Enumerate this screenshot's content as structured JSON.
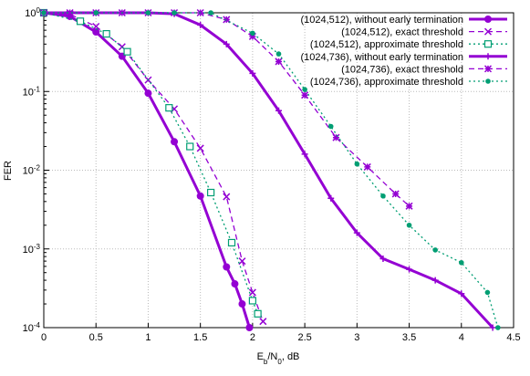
{
  "chart_data": {
    "type": "line",
    "xlabel": "E_b/N_0, dB",
    "ylabel": "FER",
    "xlim": [
      0,
      4.5
    ],
    "xticks": [
      0,
      0.5,
      1,
      1.5,
      2,
      2.5,
      3,
      3.5,
      4,
      4.5
    ],
    "ylim": [
      0.0001,
      1
    ],
    "log_y": true,
    "grid": true,
    "legend": "top-right",
    "yticks": [
      {
        "value": 0.0001,
        "label": "10^-4"
      },
      {
        "value": 0.001,
        "label": "10^-3"
      },
      {
        "value": 0.01,
        "label": "10^-2"
      },
      {
        "value": 0.1,
        "label": "10^-1"
      },
      {
        "value": 1,
        "label": "10^0"
      }
    ],
    "series": [
      {
        "name": "(1024,512), without early termination",
        "color": "#9400d3",
        "width": 3,
        "dash": "solid",
        "marker": "circle",
        "x": [
          0,
          0.25,
          0.5,
          0.75,
          1,
          1.25,
          1.5,
          1.75,
          1.83,
          1.9,
          1.97
        ],
        "values": [
          1,
          0.9,
          0.57,
          0.28,
          0.095,
          0.023,
          0.0047,
          0.00059,
          0.00036,
          0.0002,
          0.0001
        ]
      },
      {
        "name": "(1024,512), exact threshold",
        "color": "#9400d3",
        "width": 1.3,
        "dash": "dashed",
        "marker": "cross",
        "x": [
          0,
          0.25,
          0.5,
          0.75,
          1,
          1.25,
          1.5,
          1.75,
          1.9,
          2,
          2.1
        ],
        "values": [
          1,
          0.96,
          0.67,
          0.37,
          0.14,
          0.06,
          0.019,
          0.0046,
          0.0007,
          0.00028,
          0.00012
        ]
      },
      {
        "name": "(1024,512), approximate threshold",
        "color": "#009e73",
        "width": 1.3,
        "dash": "dotted",
        "marker": "square",
        "x": [
          0,
          0.35,
          0.6,
          0.8,
          1.2,
          1.4,
          1.6,
          1.8,
          2.0,
          2.05
        ],
        "values": [
          1,
          0.78,
          0.54,
          0.32,
          0.062,
          0.02,
          0.0052,
          0.0012,
          0.00022,
          0.00015
        ]
      },
      {
        "name": "(1024,736), without early termination",
        "color": "#9400d3",
        "width": 3,
        "dash": "solid",
        "marker": "plus",
        "x": [
          0,
          0.5,
          1,
          1.25,
          1.5,
          1.75,
          2,
          2.25,
          2.5,
          2.75,
          3,
          3.25,
          3.5,
          3.75,
          4,
          4.3
        ],
        "values": [
          1,
          1,
          1,
          0.97,
          0.7,
          0.4,
          0.17,
          0.057,
          0.016,
          0.0044,
          0.0016,
          0.00075,
          0.00055,
          0.0004,
          0.00027,
          0.0001
        ]
      },
      {
        "name": "(1024,736), exact threshold",
        "color": "#9400d3",
        "width": 1.3,
        "dash": "dashed",
        "marker": "star",
        "x": [
          0,
          0.25,
          0.5,
          0.75,
          1,
          1.25,
          1.5,
          1.75,
          2,
          2.25,
          2.5,
          2.8,
          3.1,
          3.37,
          3.5
        ],
        "values": [
          1,
          1,
          1,
          1,
          1,
          1,
          1,
          0.82,
          0.5,
          0.24,
          0.09,
          0.026,
          0.011,
          0.005,
          0.0035
        ]
      },
      {
        "name": "(1024,736), approximate threshold",
        "color": "#009e73",
        "width": 1.3,
        "dash": "dotted",
        "marker": "dot",
        "x": [
          0,
          0.5,
          1,
          1.25,
          1.6,
          2,
          2.25,
          2.5,
          2.75,
          3,
          3.25,
          3.5,
          3.75,
          4,
          4.25,
          4.35
        ],
        "values": [
          1,
          1,
          1,
          1,
          1,
          0.55,
          0.3,
          0.106,
          0.036,
          0.012,
          0.0047,
          0.002,
          0.00097,
          0.00067,
          0.00028,
          0.0001
        ]
      }
    ]
  }
}
